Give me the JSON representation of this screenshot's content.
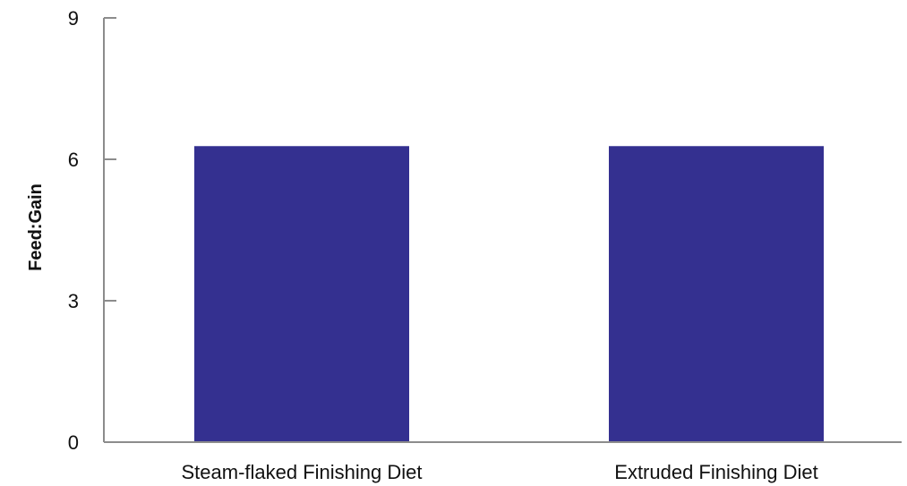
{
  "chart_data": {
    "type": "bar",
    "categories": [
      "Steam-flaked Finishing Diet",
      "Extruded Finishing Diet"
    ],
    "values": [
      6.28,
      6.28
    ],
    "title": "",
    "xlabel": "",
    "ylabel": "Feed:Gain",
    "ylim": [
      0,
      9
    ],
    "yticks": [
      0,
      3,
      6,
      9
    ],
    "bar_color": "#343090",
    "axis_color": "#8c8c8c",
    "grid": false,
    "legend": "none"
  }
}
